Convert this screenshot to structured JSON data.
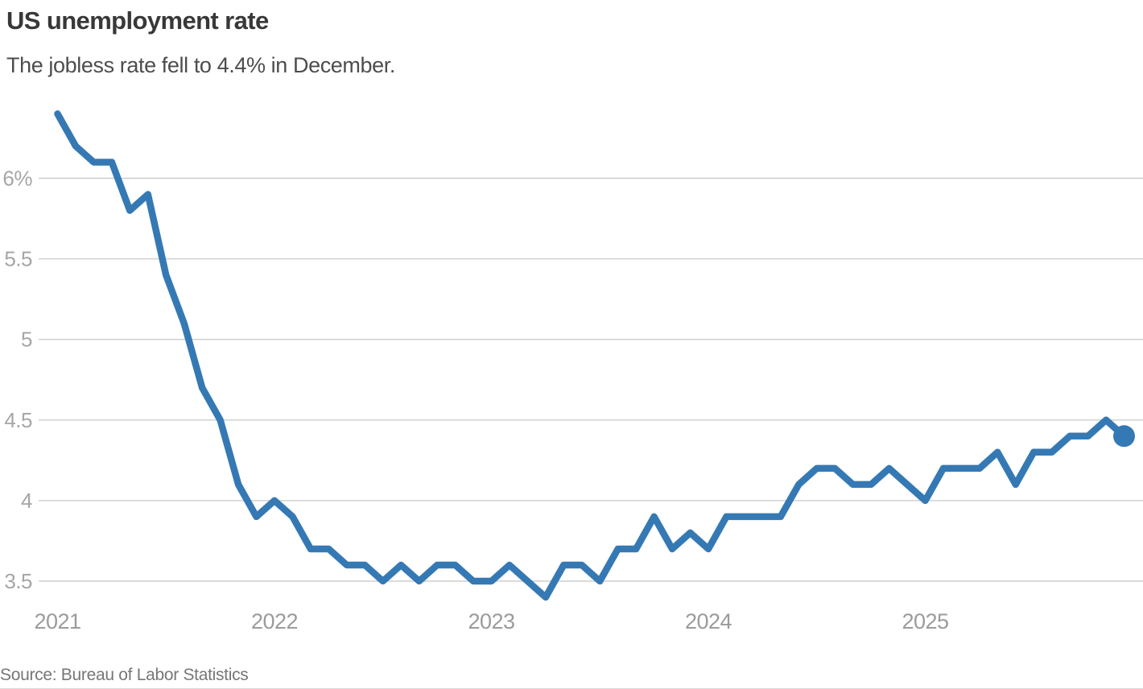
{
  "header": {
    "title": "US unemployment rate",
    "subtitle": "The jobless rate fell to 4.4% in December."
  },
  "footer": {
    "source": "Source: Bureau of Labor Statistics"
  },
  "colors": {
    "line": "#3579b4",
    "marker": "#3579b4",
    "grid": "#cdcdcd",
    "title": "#383838",
    "subtitle": "#4d4d4d",
    "axis_labels": "#a3a3a3",
    "source": "#767676"
  },
  "chart_data": {
    "type": "line",
    "title": "US unemployment rate",
    "subtitle": "The jobless rate fell to 4.4% in December.",
    "source": "Source: Bureau of Labor Statistics",
    "unit": "percent",
    "grid": "horizontal",
    "legend": "none",
    "ylim": [
      3.35,
      6.45
    ],
    "y_ticks": [
      {
        "label": "6%",
        "value": 6.0
      },
      {
        "label": "5.5",
        "value": 5.5
      },
      {
        "label": "5",
        "value": 5.0
      },
      {
        "label": "4.5",
        "value": 4.5
      },
      {
        "label": "4",
        "value": 4.0
      },
      {
        "label": "3.5",
        "value": 3.5
      }
    ],
    "x_ticks": [
      {
        "label": "2021",
        "month_index": 0
      },
      {
        "label": "2022",
        "month_index": 12
      },
      {
        "label": "2023",
        "month_index": 24
      },
      {
        "label": "2024",
        "month_index": 36
      },
      {
        "label": "2025",
        "month_index": 48
      }
    ],
    "x": [
      "2021-01",
      "2021-02",
      "2021-03",
      "2021-04",
      "2021-05",
      "2021-06",
      "2021-07",
      "2021-08",
      "2021-09",
      "2021-10",
      "2021-11",
      "2021-12",
      "2022-01",
      "2022-02",
      "2022-03",
      "2022-04",
      "2022-05",
      "2022-06",
      "2022-07",
      "2022-08",
      "2022-09",
      "2022-10",
      "2022-11",
      "2022-12",
      "2023-01",
      "2023-02",
      "2023-03",
      "2023-04",
      "2023-05",
      "2023-06",
      "2023-07",
      "2023-08",
      "2023-09",
      "2023-10",
      "2023-11",
      "2023-12",
      "2024-01",
      "2024-02",
      "2024-03",
      "2024-04",
      "2024-05",
      "2024-06",
      "2024-07",
      "2024-08",
      "2024-09",
      "2024-10",
      "2024-11",
      "2024-12",
      "2025-01",
      "2025-02",
      "2025-03",
      "2025-04",
      "2025-05",
      "2025-06",
      "2025-07",
      "2025-08",
      "2025-09",
      "2025-10",
      "2025-11",
      "2025-12"
    ],
    "series": [
      {
        "name": "US unemployment rate (%)",
        "values": [
          6.4,
          6.2,
          6.1,
          6.1,
          5.8,
          5.9,
          5.4,
          5.1,
          4.7,
          4.5,
          4.1,
          3.9,
          4.0,
          3.9,
          3.7,
          3.7,
          3.6,
          3.6,
          3.5,
          3.6,
          3.5,
          3.6,
          3.6,
          3.5,
          3.5,
          3.6,
          3.5,
          3.4,
          3.6,
          3.6,
          3.5,
          3.7,
          3.7,
          3.9,
          3.7,
          3.8,
          3.7,
          3.9,
          3.9,
          3.9,
          3.9,
          4.1,
          4.2,
          4.2,
          4.1,
          4.1,
          4.2,
          4.1,
          4.0,
          4.2,
          4.2,
          4.2,
          4.3,
          4.1,
          4.3,
          4.3,
          4.4,
          4.4,
          4.5,
          4.4
        ]
      }
    ],
    "last_point": {
      "x": "2025-12",
      "value": 4.4,
      "marker": "dot"
    }
  }
}
